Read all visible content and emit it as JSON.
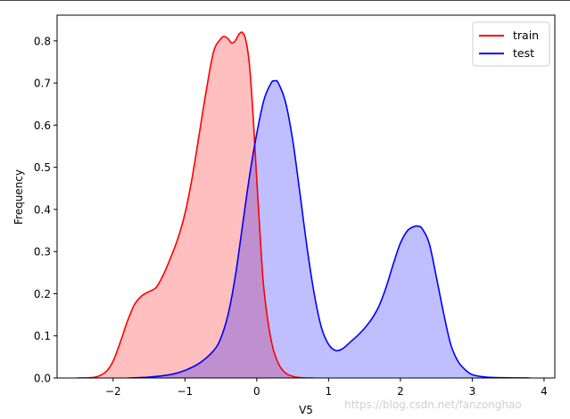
{
  "chart_data": {
    "type": "area",
    "title": "",
    "xlabel": "V5",
    "ylabel": "Frequency",
    "xlim": [
      -2.78,
      4.15
    ],
    "ylim": [
      0,
      0.861
    ],
    "x_ticks": [
      -2,
      -1,
      0,
      1,
      2,
      3,
      4
    ],
    "x_tick_labels": [
      "−2",
      "−1",
      "0",
      "1",
      "2",
      "3",
      "4"
    ],
    "y_ticks": [
      0.0,
      0.1,
      0.2,
      0.3,
      0.4,
      0.5,
      0.6,
      0.7,
      0.8
    ],
    "y_tick_labels": [
      "0.0",
      "0.1",
      "0.2",
      "0.3",
      "0.4",
      "0.5",
      "0.6",
      "0.7",
      "0.8"
    ],
    "grid": false,
    "legend_position": "top-right",
    "series": [
      {
        "name": "train",
        "color": "#ff0000",
        "fill_color": "#ff0000",
        "x": [
          -2.5,
          -2.25,
          -2.1,
          -2.0,
          -1.9,
          -1.8,
          -1.7,
          -1.6,
          -1.5,
          -1.4,
          -1.3,
          -1.2,
          -1.1,
          -1.0,
          -0.9,
          -0.8,
          -0.7,
          -0.6,
          -0.5,
          -0.45,
          -0.4,
          -0.35,
          -0.3,
          -0.25,
          -0.2,
          -0.15,
          -0.1,
          -0.05,
          0.0,
          0.05,
          0.1,
          0.2,
          0.3,
          0.4,
          0.5,
          0.6,
          0.7,
          0.8
        ],
        "y": [
          0.0,
          0.002,
          0.015,
          0.04,
          0.085,
          0.135,
          0.175,
          0.195,
          0.205,
          0.215,
          0.245,
          0.285,
          0.33,
          0.39,
          0.475,
          0.58,
          0.685,
          0.775,
          0.805,
          0.81,
          0.805,
          0.795,
          0.8,
          0.815,
          0.82,
          0.8,
          0.74,
          0.62,
          0.47,
          0.33,
          0.21,
          0.09,
          0.035,
          0.012,
          0.004,
          0.001,
          0.0,
          0.0
        ]
      },
      {
        "name": "test",
        "color": "#0000ff",
        "fill_color": "#0000ff",
        "x": [
          -1.8,
          -1.5,
          -1.2,
          -1.0,
          -0.8,
          -0.6,
          -0.5,
          -0.4,
          -0.3,
          -0.2,
          -0.1,
          0.0,
          0.1,
          0.2,
          0.25,
          0.3,
          0.4,
          0.5,
          0.6,
          0.7,
          0.8,
          0.9,
          1.0,
          1.1,
          1.2,
          1.3,
          1.4,
          1.5,
          1.6,
          1.7,
          1.8,
          1.9,
          2.0,
          2.1,
          2.2,
          2.25,
          2.3,
          2.4,
          2.5,
          2.6,
          2.7,
          2.8,
          2.9,
          3.0,
          3.2,
          3.5,
          3.8
        ],
        "y": [
          0.0,
          0.002,
          0.008,
          0.018,
          0.035,
          0.065,
          0.095,
          0.15,
          0.24,
          0.36,
          0.48,
          0.58,
          0.66,
          0.7,
          0.705,
          0.7,
          0.655,
          0.565,
          0.44,
          0.31,
          0.2,
          0.12,
          0.08,
          0.065,
          0.07,
          0.085,
          0.1,
          0.118,
          0.14,
          0.17,
          0.215,
          0.27,
          0.32,
          0.35,
          0.36,
          0.36,
          0.355,
          0.32,
          0.24,
          0.155,
          0.08,
          0.04,
          0.02,
          0.008,
          0.002,
          0.0005,
          0.0
        ]
      }
    ]
  },
  "watermark": "https://blog.csdn.net/fanzonghao"
}
